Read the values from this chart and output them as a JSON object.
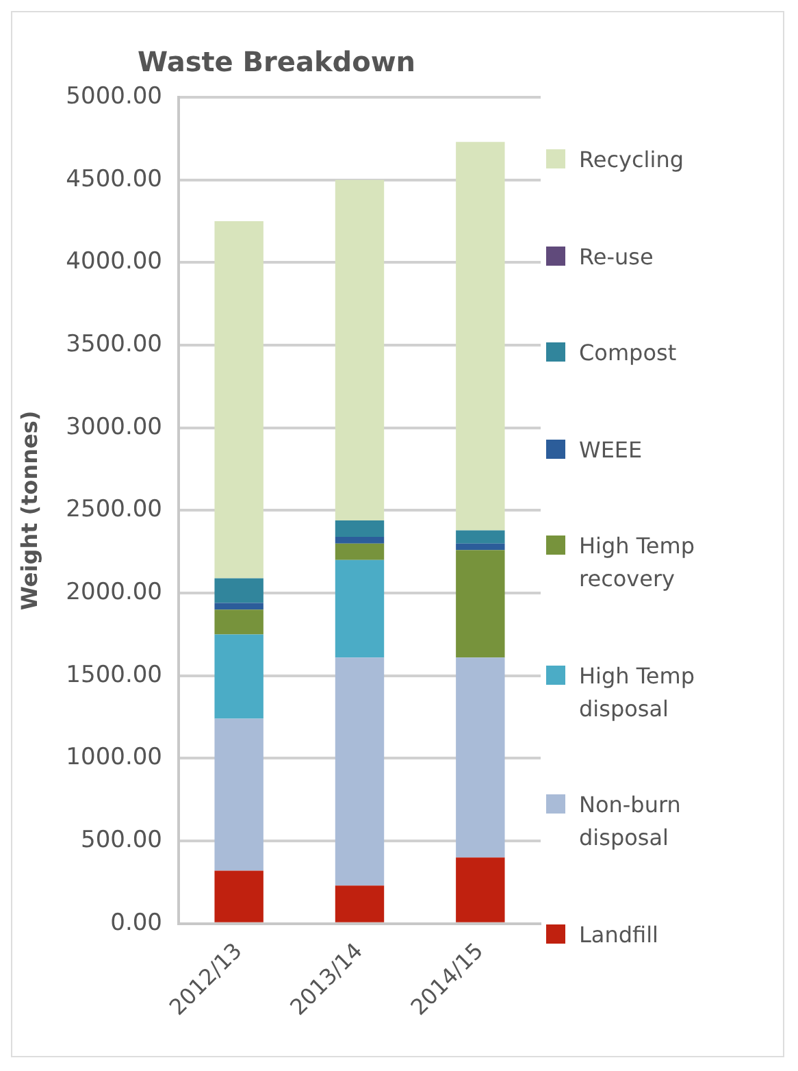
{
  "chart_data": {
    "type": "bar",
    "title": "Waste Breakdown",
    "ylabel": "Weight (tonnes)",
    "stacked": true,
    "categories": [
      "2012/13",
      "2013/14",
      "2014/15"
    ],
    "series": [
      {
        "name": "Landfill",
        "color": "#c0210f",
        "values": [
          320,
          230,
          400
        ]
      },
      {
        "name": "Non-burn disposal",
        "color": "#a9bbd7",
        "values": [
          920,
          1380,
          1210
        ]
      },
      {
        "name": "High Temp disposal",
        "color": "#4bacc6",
        "values": [
          510,
          590,
          0
        ]
      },
      {
        "name": "High Temp recovery",
        "color": "#77933c",
        "values": [
          150,
          100,
          650
        ]
      },
      {
        "name": "WEEE",
        "color": "#2c5d9a",
        "values": [
          40,
          40,
          40
        ]
      },
      {
        "name": "Compost",
        "color": "#31859c",
        "values": [
          150,
          100,
          80
        ]
      },
      {
        "name": "Re-use",
        "color": "#604a7b",
        "values": [
          0,
          0,
          0
        ]
      },
      {
        "name": "Recycling",
        "color": "#d8e4bc",
        "values": [
          2160,
          2060,
          2350
        ]
      }
    ],
    "ylim": [
      0,
      5000
    ],
    "yticks": [
      {
        "value": 0,
        "label": "0.00"
      },
      {
        "value": 500,
        "label": "500.00"
      },
      {
        "value": 1000,
        "label": "1000.00"
      },
      {
        "value": 1500,
        "label": "1500.00"
      },
      {
        "value": 2000,
        "label": "2000.00"
      },
      {
        "value": 2500,
        "label": "2500.00"
      },
      {
        "value": 3000,
        "label": "3000.00"
      },
      {
        "value": 3500,
        "label": "3500.00"
      },
      {
        "value": 4000,
        "label": "4000.00"
      },
      {
        "value": 4500,
        "label": "4500.00"
      },
      {
        "value": 5000,
        "label": "5000.00"
      }
    ],
    "grid": "y",
    "legend": "right"
  }
}
